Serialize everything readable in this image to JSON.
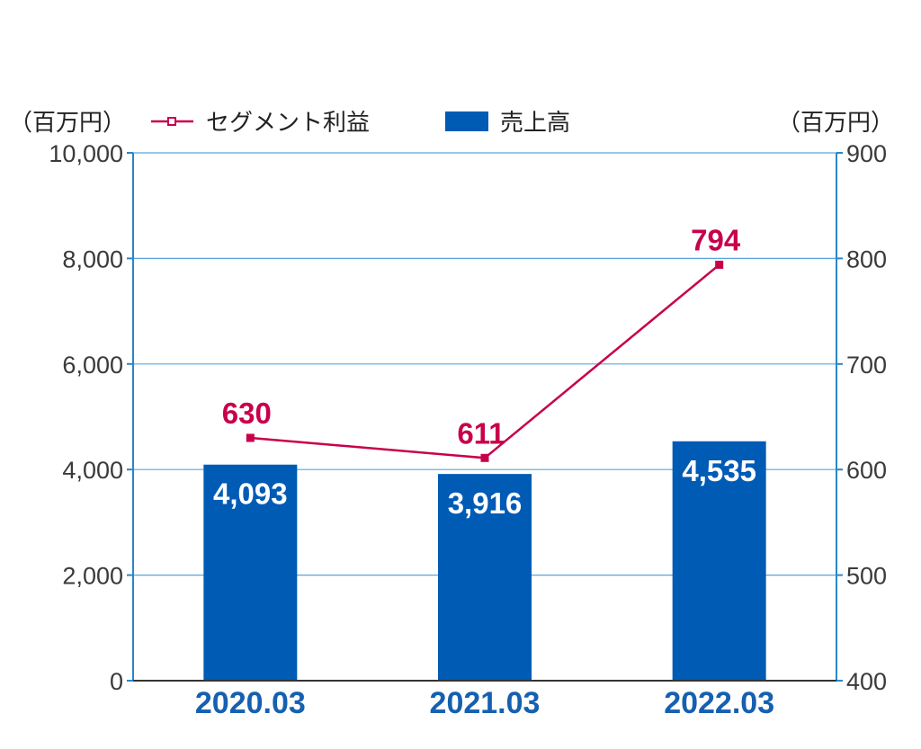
{
  "colors": {
    "bar": "#005bb5",
    "line": "#c8004b",
    "axis": "#2a86c8",
    "grid": "#5aa6dc",
    "category": "#1560b0"
  },
  "units": {
    "left": "（百万円）",
    "right": "（百万円）"
  },
  "legend": {
    "line_label": "セグメント利益",
    "bar_label": "売上高",
    "placement": "top"
  },
  "chart_data": {
    "type": "bar",
    "categories": [
      "2020.03",
      "2021.03",
      "2022.03"
    ],
    "series": [
      {
        "name": "売上高",
        "type": "bar",
        "axis": "left",
        "values": [
          4093,
          3916,
          4535
        ],
        "labels": [
          "4,093",
          "3,916",
          "4,535"
        ]
      },
      {
        "name": "セグメント利益",
        "type": "line",
        "axis": "right",
        "values": [
          630,
          611,
          794
        ],
        "labels": [
          "630",
          "611",
          "794"
        ]
      }
    ],
    "y_left": {
      "lim": [
        0,
        10000
      ],
      "ticks": [
        0,
        2000,
        4000,
        6000,
        8000,
        10000
      ],
      "tick_labels": [
        "0",
        "2,000",
        "4,000",
        "6,000",
        "8,000",
        "10,000"
      ]
    },
    "y_right": {
      "lim": [
        400,
        900
      ],
      "ticks": [
        400,
        500,
        600,
        700,
        800,
        900
      ],
      "tick_labels": [
        "400",
        "500",
        "600",
        "700",
        "800",
        "900"
      ]
    },
    "grid": true
  }
}
